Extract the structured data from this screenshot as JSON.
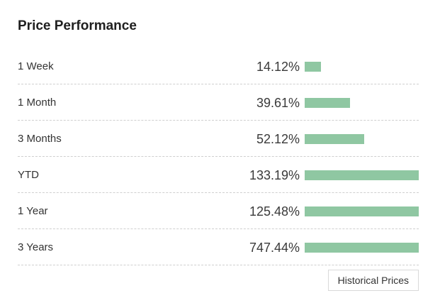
{
  "title": "Price Performance",
  "accent_color": "#8fc7a2",
  "rows": [
    {
      "period": "1 Week",
      "change": "14.12%",
      "percent": 14.12
    },
    {
      "period": "1 Month",
      "change": "39.61%",
      "percent": 39.61
    },
    {
      "period": "3 Months",
      "change": "52.12%",
      "percent": 52.12
    },
    {
      "period": "YTD",
      "change": "133.19%",
      "percent": 133.19
    },
    {
      "period": "1 Year",
      "change": "125.48%",
      "percent": 125.48
    },
    {
      "period": "3 Years",
      "change": "747.44%",
      "percent": 747.44
    }
  ],
  "bar_scale_max_percent": 100,
  "historical_button_label": "Historical Prices"
}
